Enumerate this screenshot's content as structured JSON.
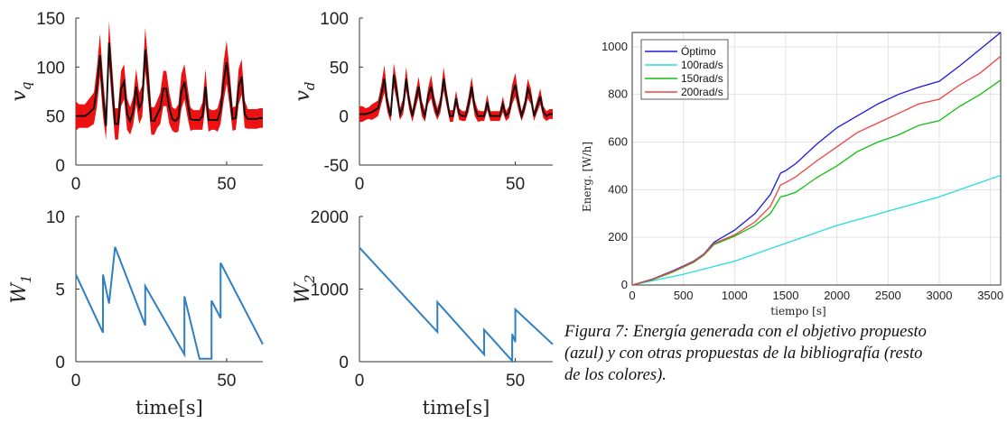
{
  "chart_data": [
    {
      "type": "line",
      "ylabel_italic": "v",
      "ylabel_sub": "q",
      "xlim": [
        0,
        62
      ],
      "ylim": [
        0,
        150
      ],
      "xticks": [
        "0",
        "50"
      ],
      "xtick_values": [
        0,
        50
      ],
      "yticks": [
        "0",
        "50",
        "100",
        "150"
      ],
      "ytick_values": [
        0,
        50,
        100,
        150
      ],
      "band_color": "#ee1111",
      "line_color": "#111111",
      "series": [
        {
          "x": [
            0,
            1,
            2,
            3,
            4,
            5,
            6,
            7,
            8,
            9,
            10,
            11,
            12,
            13,
            14,
            15,
            16,
            17,
            18,
            19,
            20,
            21,
            22,
            23,
            24,
            25,
            26,
            27,
            28,
            29,
            30,
            31,
            32,
            33,
            34,
            35,
            36,
            37,
            38,
            39,
            40,
            41,
            42,
            43,
            44,
            45,
            46,
            47,
            48,
            49,
            50,
            51,
            52,
            53,
            54,
            55,
            56,
            57,
            58,
            59,
            60,
            61,
            62
          ],
          "values": [
            50,
            50,
            50,
            50,
            52,
            55,
            58,
            80,
            112,
            70,
            40,
            125,
            82,
            42,
            42,
            78,
            85,
            52,
            45,
            55,
            80,
            58,
            65,
            118,
            85,
            45,
            45,
            52,
            58,
            78,
            78,
            58,
            47,
            45,
            48,
            75,
            85,
            65,
            47,
            46,
            46,
            46,
            50,
            80,
            46,
            46,
            46,
            46,
            56,
            85,
            105,
            78,
            47,
            48,
            80,
            90,
            52,
            47,
            47,
            47,
            47,
            48,
            48
          ],
          "band": [
            15,
            12,
            12,
            12,
            14,
            15,
            16,
            20,
            22,
            20,
            14,
            22,
            20,
            16,
            16,
            18,
            18,
            16,
            14,
            14,
            18,
            16,
            16,
            22,
            20,
            14,
            14,
            14,
            16,
            18,
            18,
            16,
            12,
            12,
            14,
            18,
            18,
            16,
            12,
            10,
            10,
            10,
            14,
            18,
            12,
            10,
            10,
            12,
            14,
            20,
            22,
            18,
            12,
            12,
            18,
            18,
            14,
            10,
            10,
            10,
            10,
            10,
            10
          ]
        }
      ]
    },
    {
      "type": "line",
      "ylabel_italic": "v",
      "ylabel_sub": "d",
      "xlim": [
        0,
        62
      ],
      "ylim": [
        -50,
        100
      ],
      "xticks": [
        "0",
        "50"
      ],
      "xtick_values": [
        0,
        50
      ],
      "yticks": [
        "-50",
        "0",
        "50",
        "100"
      ],
      "ytick_values": [
        -50,
        0,
        50,
        100
      ],
      "band_color": "#ee1111",
      "line_color": "#111111",
      "series": [
        {
          "x": [
            0,
            1,
            2,
            3,
            4,
            5,
            6,
            7,
            8,
            9,
            10,
            11,
            12,
            13,
            14,
            15,
            16,
            17,
            18,
            19,
            20,
            21,
            22,
            23,
            24,
            25,
            26,
            27,
            28,
            29,
            30,
            31,
            32,
            33,
            34,
            35,
            36,
            37,
            38,
            39,
            40,
            41,
            42,
            43,
            44,
            45,
            46,
            47,
            48,
            49,
            50,
            51,
            52,
            53,
            54,
            55,
            56,
            57,
            58,
            59,
            60,
            61,
            62
          ],
          "values": [
            2,
            2,
            2,
            3,
            4,
            6,
            8,
            22,
            38,
            12,
            0,
            42,
            25,
            2,
            10,
            38,
            14,
            0,
            16,
            30,
            8,
            0,
            20,
            30,
            12,
            2,
            12,
            38,
            18,
            0,
            0,
            18,
            2,
            0,
            0,
            12,
            30,
            8,
            0,
            0,
            0,
            14,
            0,
            0,
            0,
            0,
            12,
            0,
            4,
            22,
            32,
            14,
            0,
            10,
            28,
            20,
            0,
            10,
            20,
            4,
            0,
            2,
            2
          ],
          "band": [
            8,
            8,
            6,
            6,
            8,
            8,
            8,
            10,
            14,
            8,
            6,
            12,
            10,
            6,
            8,
            12,
            8,
            6,
            8,
            10,
            8,
            6,
            8,
            12,
            8,
            6,
            8,
            12,
            8,
            6,
            6,
            8,
            6,
            5,
            5,
            8,
            10,
            8,
            6,
            5,
            5,
            8,
            5,
            5,
            5,
            5,
            8,
            5,
            6,
            10,
            12,
            8,
            5,
            6,
            10,
            8,
            5,
            6,
            8,
            6,
            5,
            5,
            5
          ]
        }
      ]
    },
    {
      "type": "line",
      "ylabel_italic": "W",
      "ylabel_sub": "1",
      "xlabel": "time[s]",
      "xlim": [
        0,
        62
      ],
      "ylim": [
        0,
        10
      ],
      "xticks": [
        "0",
        "50"
      ],
      "xtick_values": [
        0,
        50
      ],
      "yticks": [
        "0",
        "5",
        "10"
      ],
      "ytick_values": [
        0,
        5,
        10
      ],
      "line_color": "#2f7fc1",
      "series": [
        {
          "x": [
            0,
            9,
            9,
            11,
            13,
            13,
            23,
            23,
            36,
            36,
            41,
            45,
            45,
            48,
            48,
            62
          ],
          "values": [
            6,
            2,
            6,
            4,
            7.9,
            7.9,
            2.5,
            5.2,
            0.5,
            4.5,
            0.2,
            0.2,
            4.2,
            3,
            6.8,
            1.2
          ]
        }
      ]
    },
    {
      "type": "line",
      "ylabel_italic": "W",
      "ylabel_sub": "2",
      "xlabel": "time[s]",
      "xlim": [
        0,
        62
      ],
      "ylim": [
        0,
        2000
      ],
      "xticks": [
        "0",
        "50"
      ],
      "xtick_values": [
        0,
        50
      ],
      "yticks": [
        "0",
        "1000",
        "2000"
      ],
      "ytick_values": [
        0,
        1000,
        2000
      ],
      "line_color": "#2f7fc1",
      "series": [
        {
          "x": [
            0,
            25,
            25,
            40,
            40,
            49,
            49,
            50,
            50,
            62
          ],
          "values": [
            1570,
            410,
            820,
            100,
            440,
            10,
            380,
            270,
            720,
            240
          ]
        }
      ]
    },
    {
      "type": "line",
      "xlabel": "tiempo [s]",
      "ylabel": "Energ. [W/h]",
      "xlim": [
        0,
        3600
      ],
      "ylim": [
        0,
        1060
      ],
      "xticks": [
        "0",
        "500",
        "1000",
        "1500",
        "2000",
        "2500",
        "3000",
        "3500"
      ],
      "xtick_values": [
        0,
        500,
        1000,
        1500,
        2000,
        2500,
        3000,
        3500
      ],
      "yticks": [
        "0",
        "200",
        "400",
        "600",
        "800",
        "1000"
      ],
      "ytick_values": [
        0,
        200,
        400,
        600,
        800,
        1000
      ],
      "grid": true,
      "legend_position": "top-left",
      "series": [
        {
          "name": "Óptimo",
          "color": "#1a1adc",
          "x": [
            0,
            200,
            400,
            600,
            700,
            800,
            1000,
            1200,
            1350,
            1450,
            1500,
            1600,
            1800,
            2000,
            2200,
            2400,
            2600,
            2800,
            3000,
            3200,
            3400,
            3600
          ],
          "values": [
            0,
            25,
            60,
            100,
            130,
            180,
            230,
            300,
            380,
            470,
            480,
            510,
            590,
            660,
            710,
            760,
            800,
            830,
            855,
            920,
            990,
            1060
          ]
        },
        {
          "name": "100rad/s",
          "color": "#22dddd",
          "x": [
            0,
            500,
            1000,
            1500,
            2000,
            2500,
            3000,
            3600
          ],
          "values": [
            0,
            45,
            100,
            175,
            250,
            310,
            370,
            460
          ]
        },
        {
          "name": "150rad/s",
          "color": "#10c010",
          "x": [
            0,
            200,
            400,
            600,
            700,
            800,
            1000,
            1200,
            1350,
            1450,
            1500,
            1600,
            1800,
            2000,
            2200,
            2400,
            2600,
            2800,
            3000,
            3200,
            3400,
            3600
          ],
          "values": [
            0,
            22,
            55,
            95,
            125,
            170,
            205,
            250,
            300,
            370,
            375,
            390,
            450,
            500,
            560,
            600,
            630,
            670,
            690,
            750,
            800,
            860
          ]
        },
        {
          "name": "200rad/s",
          "color": "#ee4444",
          "x": [
            0,
            200,
            400,
            600,
            700,
            800,
            1000,
            1200,
            1350,
            1450,
            1500,
            1600,
            1800,
            2000,
            2200,
            2400,
            2600,
            2800,
            3000,
            3200,
            3400,
            3600
          ],
          "values": [
            0,
            24,
            58,
            98,
            128,
            175,
            210,
            265,
            330,
            420,
            430,
            455,
            520,
            580,
            640,
            680,
            720,
            760,
            780,
            840,
            890,
            960
          ]
        }
      ]
    }
  ],
  "caption": {
    "line1": "Figura 7: Energía generada con el objetivo propuesto",
    "line2": "(azul) y con otras propuestas de la bibliografía (resto",
    "line3": "de los colores)."
  }
}
